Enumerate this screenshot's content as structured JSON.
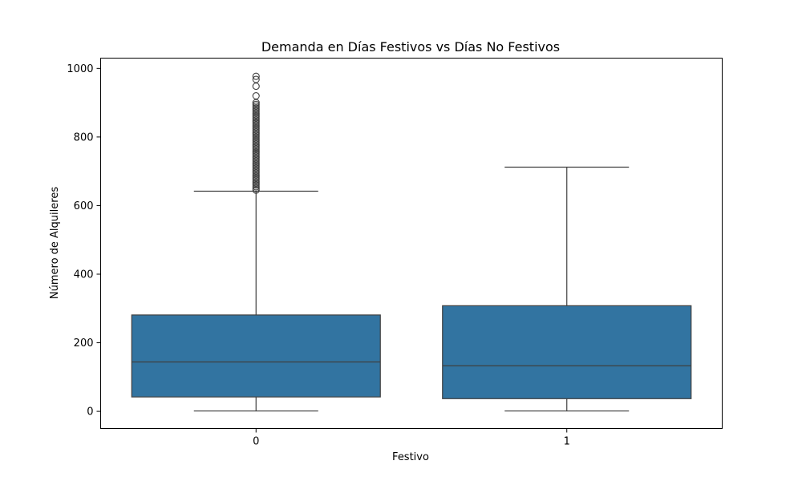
{
  "chart_data": {
    "type": "box",
    "title": "Demanda en Días Festivos vs Días No Festivos",
    "xlabel": "Festivo",
    "ylabel": "Número de Alquileres",
    "categories": [
      "0",
      "1"
    ],
    "ylim": [
      -50,
      1030
    ],
    "yticks": [
      0,
      200,
      400,
      600,
      800,
      1000
    ],
    "grid": false,
    "box_color": "#3274a1",
    "line_color": "#3f3f3f",
    "boxes": [
      {
        "category": "0",
        "whisker_low": 1,
        "q1": 42,
        "median": 144,
        "q3": 281,
        "whisker_high": 642,
        "outliers": [
          645,
          650,
          655,
          660,
          665,
          670,
          675,
          680,
          685,
          690,
          695,
          700,
          705,
          710,
          715,
          720,
          725,
          730,
          735,
          740,
          745,
          750,
          755,
          760,
          765,
          770,
          775,
          780,
          785,
          790,
          795,
          800,
          805,
          810,
          815,
          820,
          825,
          830,
          835,
          840,
          845,
          850,
          855,
          860,
          865,
          870,
          875,
          880,
          885,
          890,
          895,
          900,
          920,
          948,
          968,
          977
        ]
      },
      {
        "category": "1",
        "whisker_low": 1,
        "q1": 37,
        "median": 133,
        "q3": 308,
        "whisker_high": 712,
        "outliers": []
      }
    ]
  }
}
